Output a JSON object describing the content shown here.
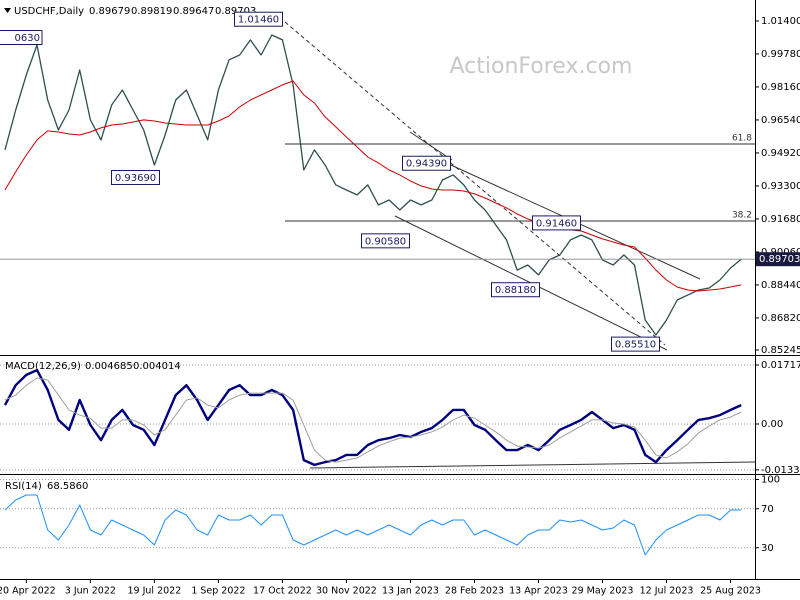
{
  "chart_data": [
    {
      "type": "line",
      "title": "USDCHF,Daily",
      "ohlc": [
        0.89679,
        0.89819,
        0.89647,
        0.89703
      ],
      "watermark": "ActionForex.com",
      "ylim": [
        0.85,
        1.0233
      ],
      "yticks": [
        {
          "value": 1.014,
          "label": "1.01400"
        },
        {
          "value": 0.9978,
          "label": "0.99780"
        },
        {
          "value": 0.9816,
          "label": "0.98160"
        },
        {
          "value": 0.9654,
          "label": "0.96540"
        },
        {
          "value": 0.9492,
          "label": "0.94920"
        },
        {
          "value": 0.933,
          "label": "0.93300"
        },
        {
          "value": 0.9168,
          "label": "0.91680"
        },
        {
          "value": 0.9006,
          "label": "0.90060"
        },
        {
          "value": 0.8844,
          "label": "0.88440"
        },
        {
          "value": 0.8682,
          "label": "0.86820"
        },
        0.85245
      ],
      "series": [
        {
          "color": "#2f4f4f",
          "values": [
            0.9507,
            0.9703,
            0.9875,
            1.0022,
            0.9752,
            0.9605,
            0.9703,
            0.9899,
            0.9654,
            0.9556,
            0.9728,
            0.9801,
            0.9703,
            0.9605,
            0.9433,
            0.958,
            0.9752,
            0.9801,
            0.9678,
            0.9556,
            0.9801,
            0.9949,
            0.9973,
            1.0047,
            0.9973,
            1.0071,
            1.0047,
            0.9826,
            0.9408,
            0.9507,
            0.9433,
            0.9335,
            0.931,
            0.9286,
            0.9335,
            0.9237,
            0.9261,
            0.9212,
            0.9261,
            0.9237,
            0.9261,
            0.9359,
            0.9384,
            0.9335,
            0.9261,
            0.9212,
            0.9138,
            0.9065,
            0.8917,
            0.8942,
            0.8893,
            0.8967,
            0.8991,
            0.9065,
            0.9089,
            0.9065,
            0.8967,
            0.8942,
            0.8991,
            0.8942,
            0.8672,
            0.8598,
            0.8672,
            0.877,
            0.8795,
            0.8819,
            0.8829,
            0.8868,
            0.8927,
            0.897
          ]
        },
        {
          "color": "#cc0000",
          "values": [
            0.931,
            0.9399,
            0.9482,
            0.9556,
            0.96,
            0.9595,
            0.9585,
            0.958,
            0.9595,
            0.9615,
            0.9629,
            0.9634,
            0.9644,
            0.9654,
            0.9649,
            0.9639,
            0.9634,
            0.9629,
            0.9629,
            0.9629,
            0.9649,
            0.9674,
            0.9718,
            0.9752,
            0.9777,
            0.9801,
            0.9826,
            0.9845,
            0.9777,
            0.9737,
            0.9669,
            0.962,
            0.957,
            0.9521,
            0.9472,
            0.9443,
            0.9408,
            0.9384,
            0.9354,
            0.933,
            0.9315,
            0.931,
            0.931,
            0.9305,
            0.9291,
            0.9271,
            0.9246,
            0.9222,
            0.9192,
            0.9168,
            0.9148,
            0.9133,
            0.9124,
            0.9114,
            0.9109,
            0.9089,
            0.907,
            0.9055,
            0.904,
            0.903,
            0.8976,
            0.8917,
            0.8868,
            0.8834,
            0.8819,
            0.8814,
            0.8819,
            0.8824,
            0.8834,
            0.8844
          ]
        }
      ],
      "last_price": 0.89703,
      "annotations": [
        {
          "value": 1.0146,
          "label": "1.01460"
        },
        {
          "value": 0.9369,
          "label": "0.93690"
        },
        {
          "value": 0.9439,
          "label": "0.94390"
        },
        {
          "value": 0.9058,
          "label": "0.90580"
        },
        {
          "value": 0.9146,
          "label": "0.91460"
        },
        {
          "value": 0.8818,
          "label": "0.88180"
        },
        {
          "value": 0.8551,
          "label": "0.85510"
        }
      ],
      "clipped_label": "0630",
      "fib_levels": [
        {
          "ratio": 61.8,
          "price": 0.9536
        },
        {
          "ratio": 38.2,
          "price": 0.9158
        }
      ]
    },
    {
      "type": "line",
      "title": "MACD(12,26,9)",
      "readout": [
        0.004685,
        0.004014
      ],
      "ylim": [
        -0.01426,
        0.0195
      ],
      "yticks": [
        0.017176,
        {
          "value": 0,
          "label": "0.00"
        },
        -0.01334
      ],
      "grid": true,
      "series": [
        {
          "color": "#000080",
          "values": [
            0.0055,
            0.0113,
            0.0143,
            0.0157,
            0.0099,
            0.0012,
            -0.0017,
            0.007,
            -0.0003,
            -0.0047,
            0.0012,
            0.0041,
            -0.0003,
            -0.0017,
            -0.0061,
            0.0012,
            0.0084,
            0.0113,
            0.007,
            0.0012,
            0.0055,
            0.0099,
            0.0113,
            0.0084,
            0.0084,
            0.0099,
            0.0084,
            0.0041,
            -0.0105,
            -0.0119,
            -0.0111,
            -0.0105,
            -0.009,
            -0.009,
            -0.0061,
            -0.0047,
            -0.0041,
            -0.0032,
            -0.0038,
            -0.0023,
            -0.0012,
            0.0012,
            0.0041,
            0.0041,
            -0.0003,
            -0.0017,
            -0.0047,
            -0.0076,
            -0.0076,
            -0.0061,
            -0.0076,
            -0.0047,
            -0.0017,
            -0.0003,
            0.0012,
            0.0035,
            0.0012,
            -0.0012,
            -0.0003,
            -0.0017,
            -0.009,
            -0.0111,
            -0.0076,
            -0.0047,
            -0.0017,
            0.0012,
            0.0017,
            0.0026,
            0.0041,
            0.0055
          ]
        },
        {
          "color": "#a0a0a0",
          "values": [
            0.007,
            0.0084,
            0.0113,
            0.0134,
            0.0128,
            0.0084,
            0.0041,
            0.0026,
            0.0017,
            -0.0012,
            -0.0012,
            0.0012,
            0.0012,
            -0.0003,
            -0.0032,
            -0.0017,
            0.0026,
            0.007,
            0.0076,
            0.0055,
            0.0047,
            0.007,
            0.0084,
            0.009,
            0.009,
            0.009,
            0.009,
            0.007,
            -0.0003,
            -0.0076,
            -0.0105,
            -0.0111,
            -0.0105,
            -0.0099,
            -0.0081,
            -0.0064,
            -0.0052,
            -0.0041,
            -0.0038,
            -0.0032,
            -0.0023,
            -0.0009,
            0.0012,
            0.0026,
            0.0017,
            -0.0003,
            -0.0023,
            -0.0047,
            -0.0064,
            -0.0067,
            -0.007,
            -0.0061,
            -0.0041,
            -0.0023,
            -0.0006,
            0.0012,
            0.0012,
            0.0003,
            0,
            -0.0009,
            -0.0047,
            -0.009,
            -0.0099,
            -0.0081,
            -0.0058,
            -0.0026,
            -0.0006,
            0.0012,
            0.002,
            0.0035
          ]
        }
      ]
    },
    {
      "type": "line",
      "title": "RSI(14)",
      "readout": {
        "value": 68.586,
        "label": "68.5860"
      },
      "ylim": [
        0,
        100
      ],
      "yticks": [
        100,
        70,
        30
      ],
      "grid": true,
      "categories": [
        null,
        null,
        "20 Apr 2022",
        null,
        null,
        null,
        null,
        null,
        "3 Jun 2022",
        null,
        null,
        null,
        null,
        null,
        "19 Jul 2022",
        null,
        null,
        null,
        null,
        null,
        "1 Sep 2022",
        null,
        null,
        null,
        null,
        null,
        "17 Oct 2022",
        null,
        null,
        null,
        null,
        null,
        "30 Nov 2022",
        null,
        null,
        null,
        null,
        null,
        "13 Jan 2023",
        null,
        null,
        null,
        null,
        null,
        "28 Feb 2023",
        null,
        null,
        null,
        null,
        null,
        "13 Apr 2023",
        null,
        null,
        null,
        null,
        null,
        "29 May 2023",
        null,
        null,
        null,
        null,
        null,
        "12 Jul 2023",
        null,
        null,
        null,
        null,
        null,
        "25 Aug 2023",
        null
      ],
      "series": [
        {
          "color": "#1e90ff",
          "values": [
            68.7,
            79,
            84.1,
            84.1,
            48.2,
            37.9,
            53.3,
            73.8,
            48.2,
            43.1,
            58.5,
            53.3,
            48.2,
            43.1,
            32.8,
            58.5,
            68.7,
            63.6,
            48.2,
            43.1,
            63.6,
            58.5,
            58.5,
            63.6,
            53.3,
            63.6,
            63.6,
            37.9,
            32.8,
            37.9,
            43.1,
            48.2,
            43.1,
            48.2,
            43.1,
            48.2,
            53.3,
            48.2,
            43.1,
            53.3,
            58.5,
            53.3,
            58.5,
            58.5,
            43.1,
            48.2,
            43.1,
            37.9,
            32.8,
            43.1,
            48.2,
            48.2,
            58.5,
            56.4,
            58.5,
            53.3,
            48.2,
            50.3,
            58.5,
            53.3,
            22.6,
            37.9,
            48.2,
            53.3,
            58.5,
            63.6,
            63.6,
            58.5,
            68.7,
            68.7
          ]
        }
      ]
    }
  ]
}
